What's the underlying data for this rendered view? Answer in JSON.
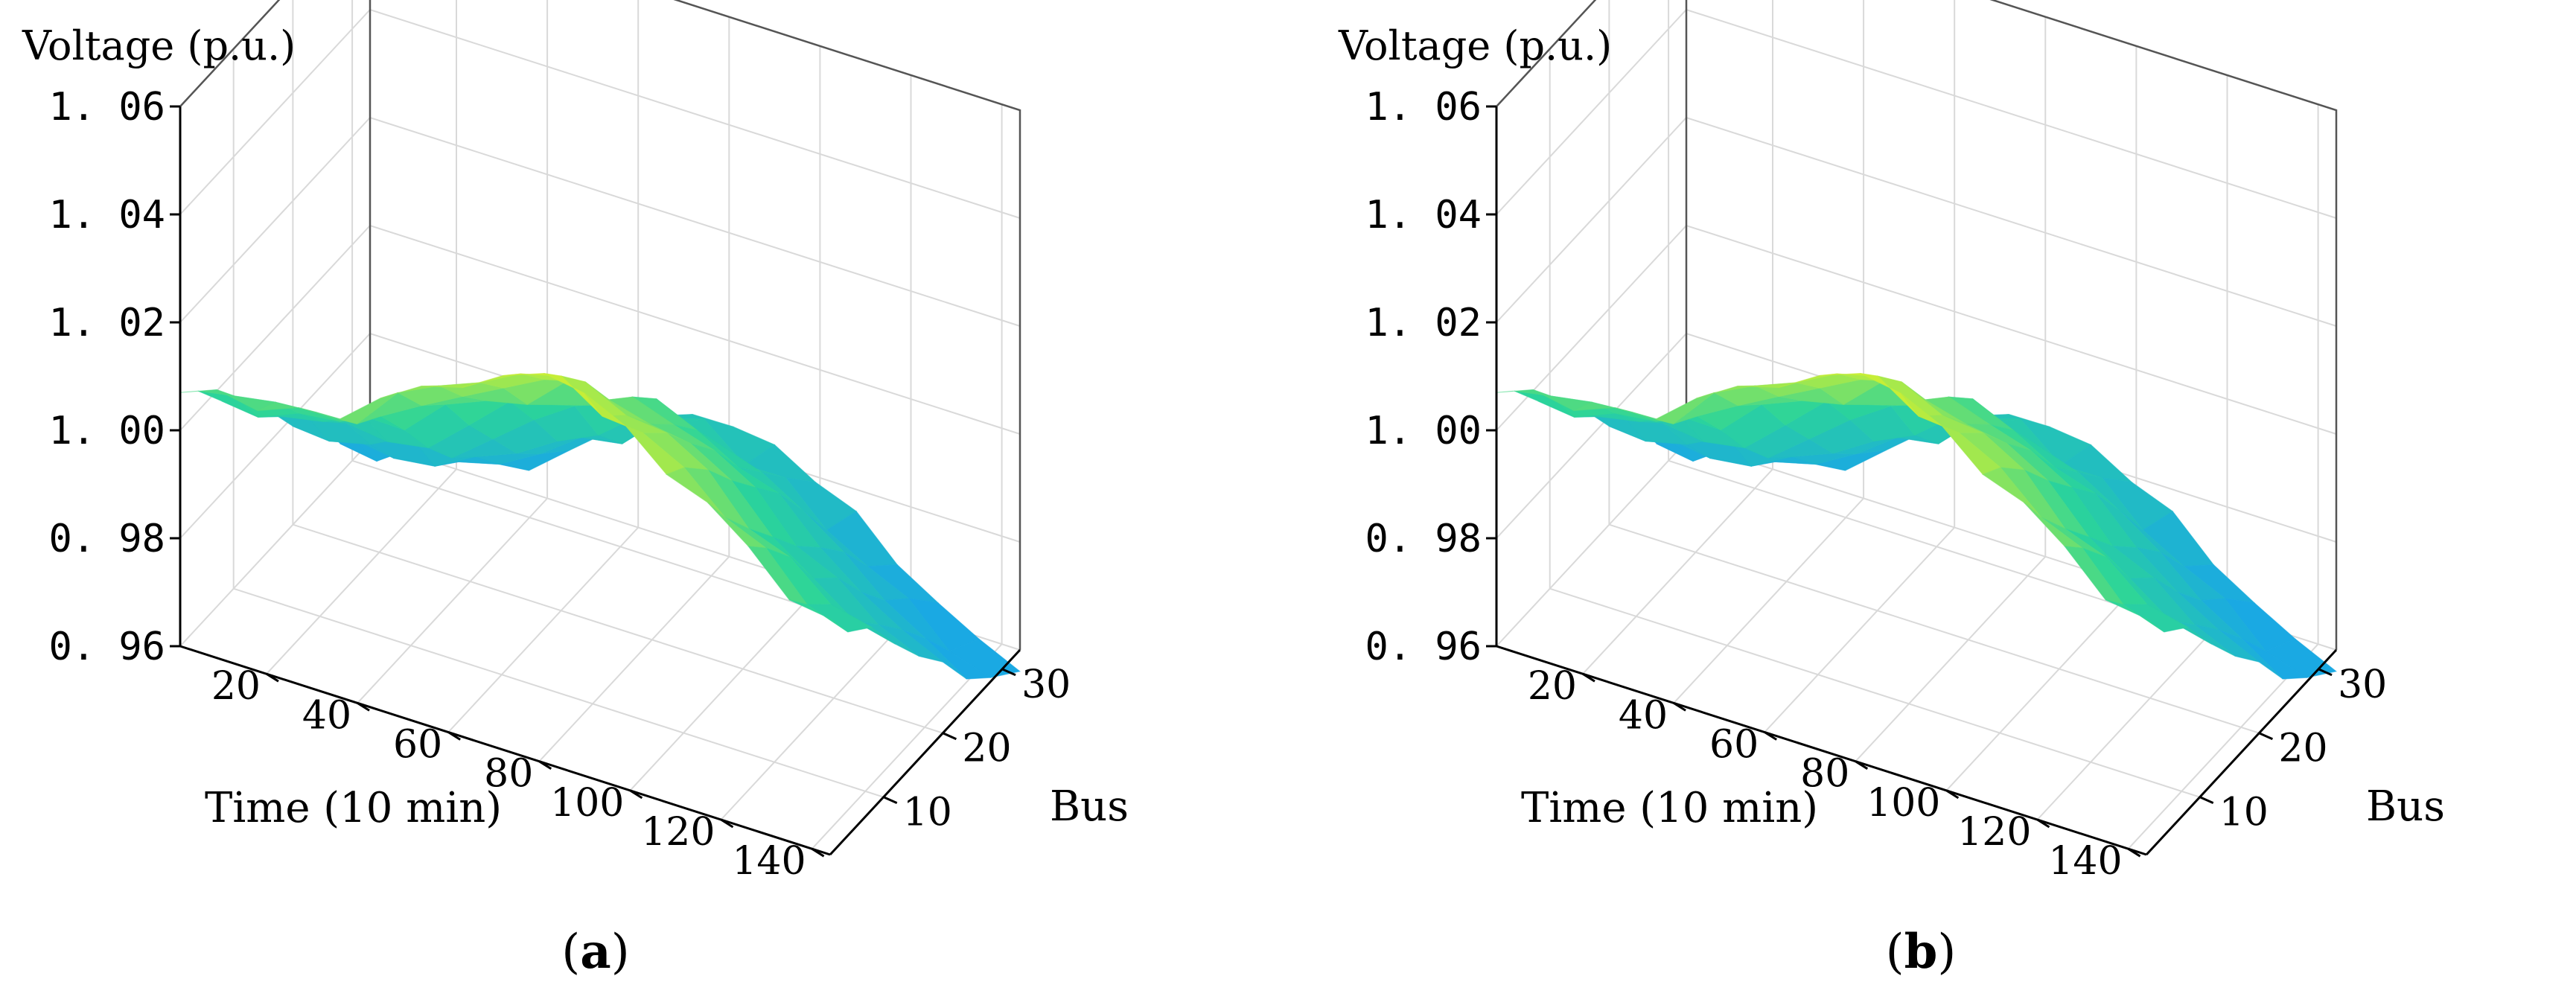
{
  "figure": {
    "panels": [
      {
        "label": "(a)",
        "label_letter": "a"
      },
      {
        "label": "(b)",
        "label_letter": "b"
      }
    ]
  },
  "colors": {
    "colormap_low": "#1aa9e3",
    "colormap_mid": "#2bd49a",
    "colormap_high": "#f0f51c",
    "grid": "#d9d9d9",
    "axis": "#000000",
    "background": "#ffffff"
  },
  "chart_data": [
    {
      "type": "surface",
      "panel": "a",
      "title": "",
      "zlabel": "Voltage (p.u.)",
      "xlabel": "Time (10 min)",
      "ylabel": "Bus",
      "zlim": [
        0.96,
        1.06
      ],
      "ztick_labels": [
        "0. 96",
        "0. 98",
        "1. 00",
        "1. 02",
        "1. 04",
        "1. 06"
      ],
      "ztick_values": [
        0.96,
        0.98,
        1.0,
        1.02,
        1.04,
        1.06
      ],
      "xlim": [
        1,
        144
      ],
      "xtick_values": [
        20,
        40,
        60,
        80,
        100,
        120,
        140
      ],
      "xtick_labels": [
        "20",
        "40",
        "60",
        "80",
        "100",
        "120",
        "140"
      ],
      "ylim": [
        1,
        33
      ],
      "ytick_values": [
        10,
        20,
        30
      ],
      "ytick_labels": [
        "10",
        "20",
        "30"
      ],
      "time_points": [
        1,
        9,
        18,
        27,
        36,
        45,
        54,
        63,
        72,
        81,
        90,
        99,
        108,
        117,
        126,
        135,
        144
      ],
      "bus_points": [
        1,
        4,
        8,
        12,
        16,
        20,
        24,
        28,
        33
      ],
      "voltage_by_time": [
        1.009,
        1.008,
        1.01,
        1.011,
        1.012,
        1.018,
        1.022,
        1.026,
        1.03,
        1.032,
        1.029,
        1.026,
        1.022,
        1.016,
        1.011,
        1.005,
        1.002
      ],
      "bus_voltage_drop": [
        0.0,
        -0.004,
        -0.01,
        -0.016,
        -0.022,
        -0.029,
        -0.036,
        -0.042,
        -0.046
      ]
    },
    {
      "type": "surface",
      "panel": "b",
      "title": "",
      "zlabel": "Voltage (p.u.)",
      "xlabel": "Time (10 min)",
      "ylabel": "Bus",
      "zlim": [
        0.96,
        1.06
      ],
      "ztick_labels": [
        "0. 96",
        "0. 98",
        "1. 00",
        "1. 02",
        "1. 04",
        "1. 06"
      ],
      "ztick_values": [
        0.96,
        0.98,
        1.0,
        1.02,
        1.04,
        1.06
      ],
      "xlim": [
        1,
        144
      ],
      "xtick_values": [
        20,
        40,
        60,
        80,
        100,
        120,
        140
      ],
      "xtick_labels": [
        "20",
        "40",
        "60",
        "80",
        "100",
        "120",
        "140"
      ],
      "ylim": [
        1,
        33
      ],
      "ytick_values": [
        10,
        20,
        30
      ],
      "ytick_labels": [
        "10",
        "20",
        "30"
      ],
      "time_points": [
        1,
        9,
        18,
        27,
        36,
        45,
        54,
        63,
        72,
        81,
        90,
        99,
        108,
        117,
        126,
        135,
        144
      ],
      "bus_points": [
        1,
        4,
        8,
        12,
        16,
        20,
        24,
        28,
        33
      ],
      "voltage_by_time": [
        1.009,
        1.008,
        1.01,
        1.011,
        1.012,
        1.018,
        1.022,
        1.026,
        1.03,
        1.032,
        1.029,
        1.026,
        1.022,
        1.016,
        1.011,
        1.005,
        1.002
      ],
      "bus_voltage_drop": [
        0.0,
        -0.004,
        -0.01,
        -0.016,
        -0.022,
        -0.029,
        -0.036,
        -0.042,
        -0.046
      ]
    }
  ]
}
